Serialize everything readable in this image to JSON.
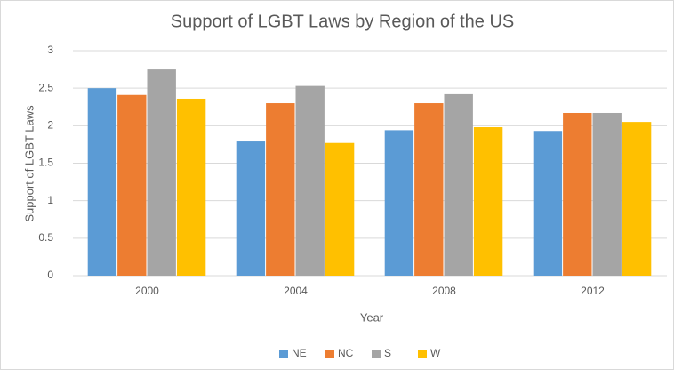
{
  "chart_data": {
    "type": "bar",
    "title": "Support of LGBT Laws by Region of the US",
    "xlabel": "Year",
    "ylabel": "Support of LGBT Laws",
    "categories": [
      "2000",
      "2004",
      "2008",
      "2012"
    ],
    "series": [
      {
        "name": "NE",
        "color": "#5b9bd5",
        "values": [
          2.5,
          1.79,
          1.94,
          1.93
        ]
      },
      {
        "name": "NC",
        "color": "#ed7d31",
        "values": [
          2.41,
          2.3,
          2.3,
          2.17
        ]
      },
      {
        "name": "S",
        "color": "#a5a5a5",
        "values": [
          2.75,
          2.53,
          2.42,
          2.17
        ]
      },
      {
        "name": "W",
        "color": "#ffc000",
        "values": [
          2.36,
          1.77,
          1.98,
          2.05
        ]
      }
    ],
    "ylim": [
      0,
      3
    ],
    "yticks": [
      0,
      0.5,
      1,
      1.5,
      2,
      2.5,
      3
    ],
    "grid": true,
    "legend": "bottom"
  }
}
